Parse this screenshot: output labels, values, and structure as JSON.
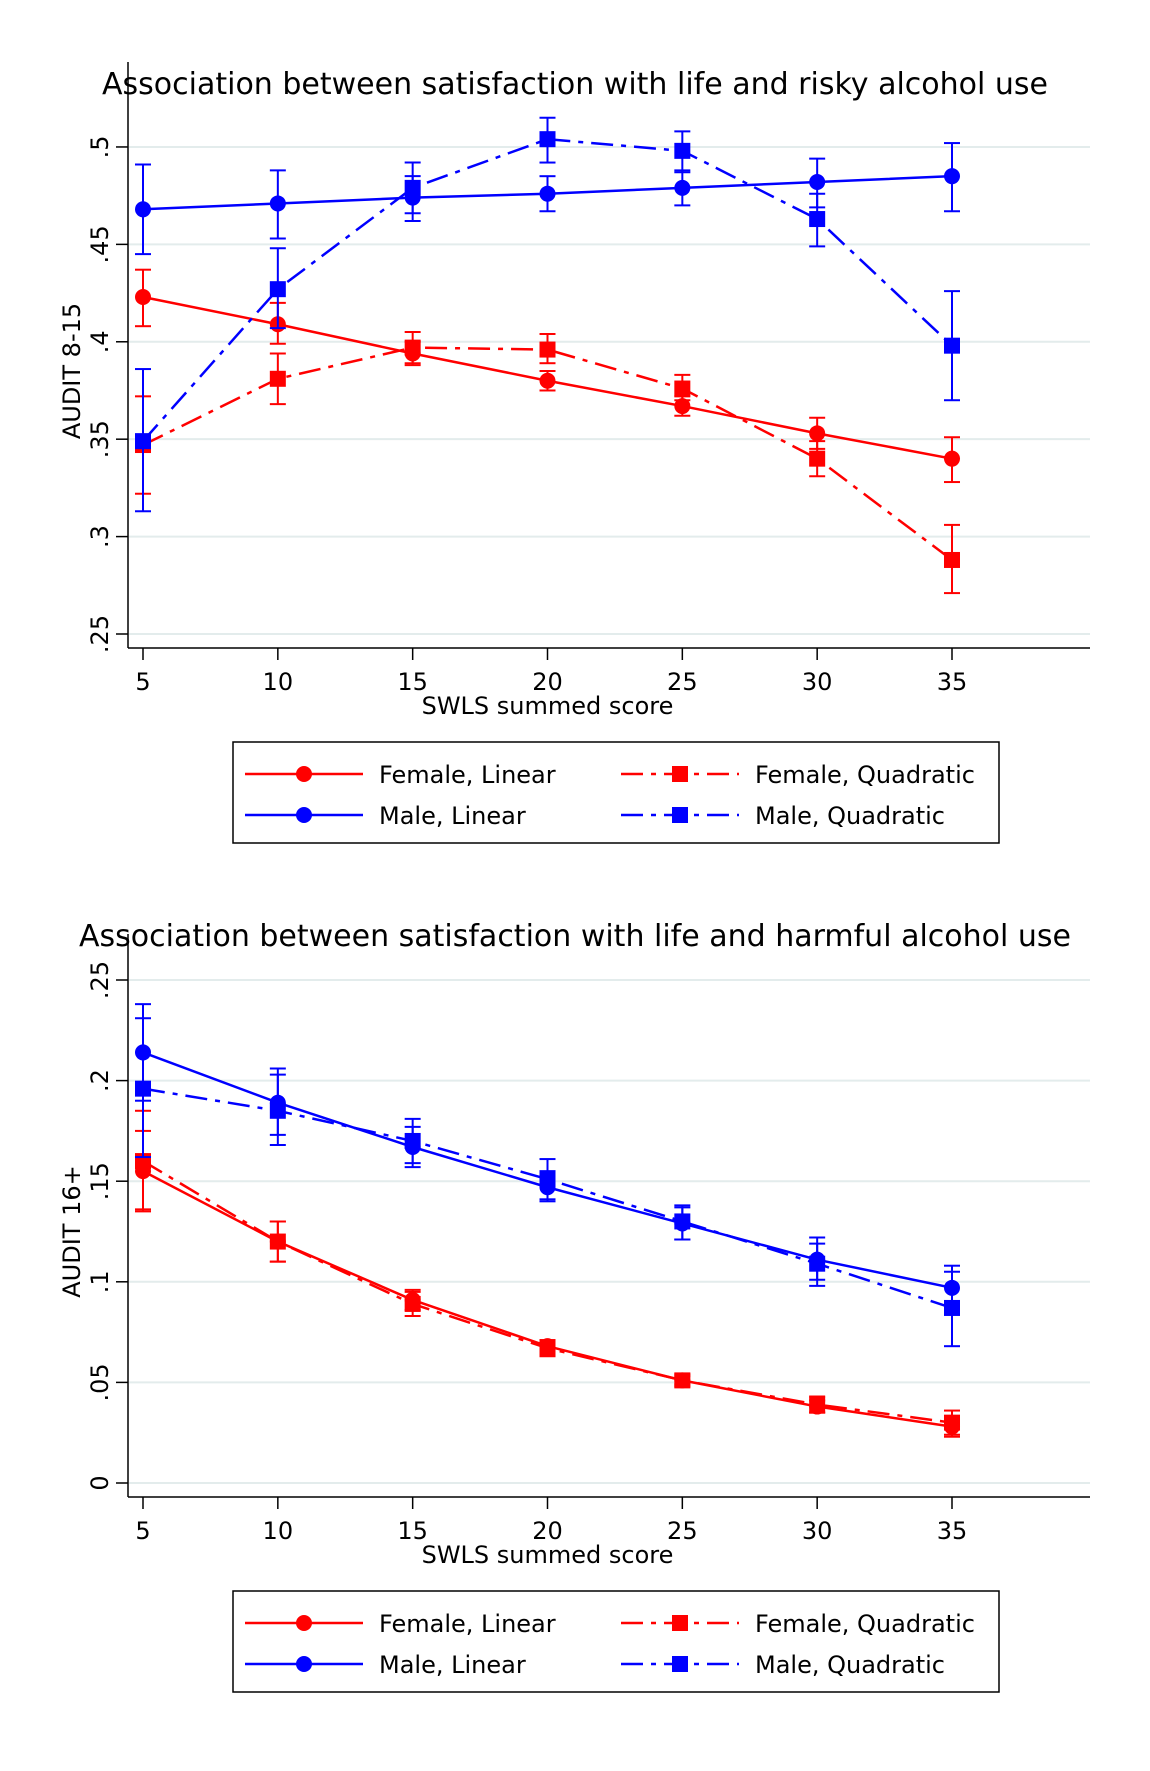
{
  "chart_data": [
    {
      "type": "line",
      "title": "Association between satisfaction with life and risky alcohol use",
      "xlabel": "SWLS summed score",
      "ylabel": "AUDIT 8-15",
      "x": [
        5,
        10,
        15,
        20,
        25,
        30,
        35
      ],
      "xlim": [
        5,
        35
      ],
      "ylim": [
        0.25,
        0.52
      ],
      "xticks": [
        "5",
        "10",
        "15",
        "20",
        "25",
        "30",
        "35"
      ],
      "yticks": [
        {
          "value": 0.25,
          "label": ".25"
        },
        {
          "value": 0.3,
          "label": ".3"
        },
        {
          "value": 0.35,
          "label": ".35"
        },
        {
          "value": 0.4,
          "label": ".4"
        },
        {
          "value": 0.45,
          "label": ".45"
        },
        {
          "value": 0.5,
          "label": ".5"
        }
      ],
      "grid": true,
      "legend_position": "bottom",
      "series": [
        {
          "name": "Female, Linear",
          "color": "#ff0000",
          "marker": "circle",
          "dash": "solid",
          "values": [
            0.423,
            0.409,
            0.394,
            0.38,
            0.367,
            0.353,
            0.34
          ],
          "lower": [
            0.408,
            0.399,
            0.388,
            0.375,
            0.362,
            0.345,
            0.328
          ],
          "upper": [
            0.437,
            0.42,
            0.4,
            0.385,
            0.372,
            0.361,
            0.351
          ]
        },
        {
          "name": "Male, Linear",
          "color": "#0000ff",
          "marker": "circle",
          "dash": "solid",
          "values": [
            0.468,
            0.471,
            0.474,
            0.476,
            0.479,
            0.482,
            0.485
          ],
          "lower": [
            0.445,
            0.453,
            0.462,
            0.467,
            0.47,
            0.469,
            0.467
          ],
          "upper": [
            0.491,
            0.488,
            0.485,
            0.485,
            0.488,
            0.494,
            0.502
          ]
        },
        {
          "name": "Female, Quadratic",
          "color": "#ff0000",
          "marker": "square",
          "dash": "dashdot",
          "values": [
            0.347,
            0.381,
            0.397,
            0.396,
            0.376,
            0.34,
            0.288
          ],
          "lower": [
            0.322,
            0.368,
            0.389,
            0.389,
            0.37,
            0.331,
            0.271
          ],
          "upper": [
            0.372,
            0.394,
            0.405,
            0.404,
            0.383,
            0.349,
            0.306
          ]
        },
        {
          "name": "Male, Quadratic",
          "color": "#0000ff",
          "marker": "square",
          "dash": "dashdot",
          "values": [
            0.349,
            0.427,
            0.479,
            0.504,
            0.498,
            0.463,
            0.398
          ],
          "lower": [
            0.313,
            0.407,
            0.466,
            0.492,
            0.487,
            0.449,
            0.37
          ],
          "upper": [
            0.386,
            0.448,
            0.492,
            0.515,
            0.508,
            0.476,
            0.426
          ]
        }
      ]
    },
    {
      "type": "line",
      "title": "Association between satisfaction with life and harmful alcohol use",
      "xlabel": "SWLS summed score",
      "ylabel": "AUDIT 16+",
      "x": [
        5,
        10,
        15,
        20,
        25,
        30,
        35
      ],
      "xlim": [
        5,
        35
      ],
      "ylim": [
        0,
        0.25
      ],
      "xticks": [
        "5",
        "10",
        "15",
        "20",
        "25",
        "30",
        "35"
      ],
      "yticks": [
        {
          "value": 0,
          "label": "0"
        },
        {
          "value": 0.05,
          "label": ".05"
        },
        {
          "value": 0.1,
          "label": ".1"
        },
        {
          "value": 0.15,
          "label": ".15"
        },
        {
          "value": 0.2,
          "label": ".2"
        },
        {
          "value": 0.25,
          "label": ".25"
        }
      ],
      "grid": true,
      "legend_position": "bottom",
      "series": [
        {
          "name": "Female, Linear",
          "color": "#ff0000",
          "marker": "circle",
          "dash": "solid",
          "values": [
            0.155,
            0.12,
            0.091,
            0.068,
            0.051,
            0.038,
            0.028
          ],
          "lower": [
            0.135,
            0.11,
            0.086,
            0.065,
            0.049,
            0.035,
            0.024
          ],
          "upper": [
            0.175,
            0.13,
            0.096,
            0.071,
            0.053,
            0.041,
            0.032
          ]
        },
        {
          "name": "Male, Linear",
          "color": "#0000ff",
          "marker": "circle",
          "dash": "solid",
          "values": [
            0.214,
            0.189,
            0.167,
            0.147,
            0.129,
            0.111,
            0.097
          ],
          "lower": [
            0.19,
            0.173,
            0.157,
            0.14,
            0.121,
            0.101,
            0.086
          ],
          "upper": [
            0.238,
            0.206,
            0.177,
            0.155,
            0.137,
            0.122,
            0.108
          ]
        },
        {
          "name": "Female, Quadratic",
          "color": "#ff0000",
          "marker": "square",
          "dash": "dashdot",
          "values": [
            0.16,
            0.12,
            0.089,
            0.067,
            0.051,
            0.039,
            0.03
          ],
          "lower": [
            0.136,
            0.11,
            0.083,
            0.063,
            0.048,
            0.035,
            0.023
          ],
          "upper": [
            0.185,
            0.13,
            0.095,
            0.071,
            0.054,
            0.043,
            0.036
          ]
        },
        {
          "name": "Male, Quadratic",
          "color": "#0000ff",
          "marker": "square",
          "dash": "dashdot",
          "values": [
            0.196,
            0.185,
            0.17,
            0.151,
            0.13,
            0.109,
            0.087
          ],
          "lower": [
            0.162,
            0.168,
            0.159,
            0.141,
            0.121,
            0.098,
            0.068
          ],
          "upper": [
            0.231,
            0.203,
            0.181,
            0.161,
            0.138,
            0.119,
            0.105
          ]
        }
      ]
    }
  ]
}
